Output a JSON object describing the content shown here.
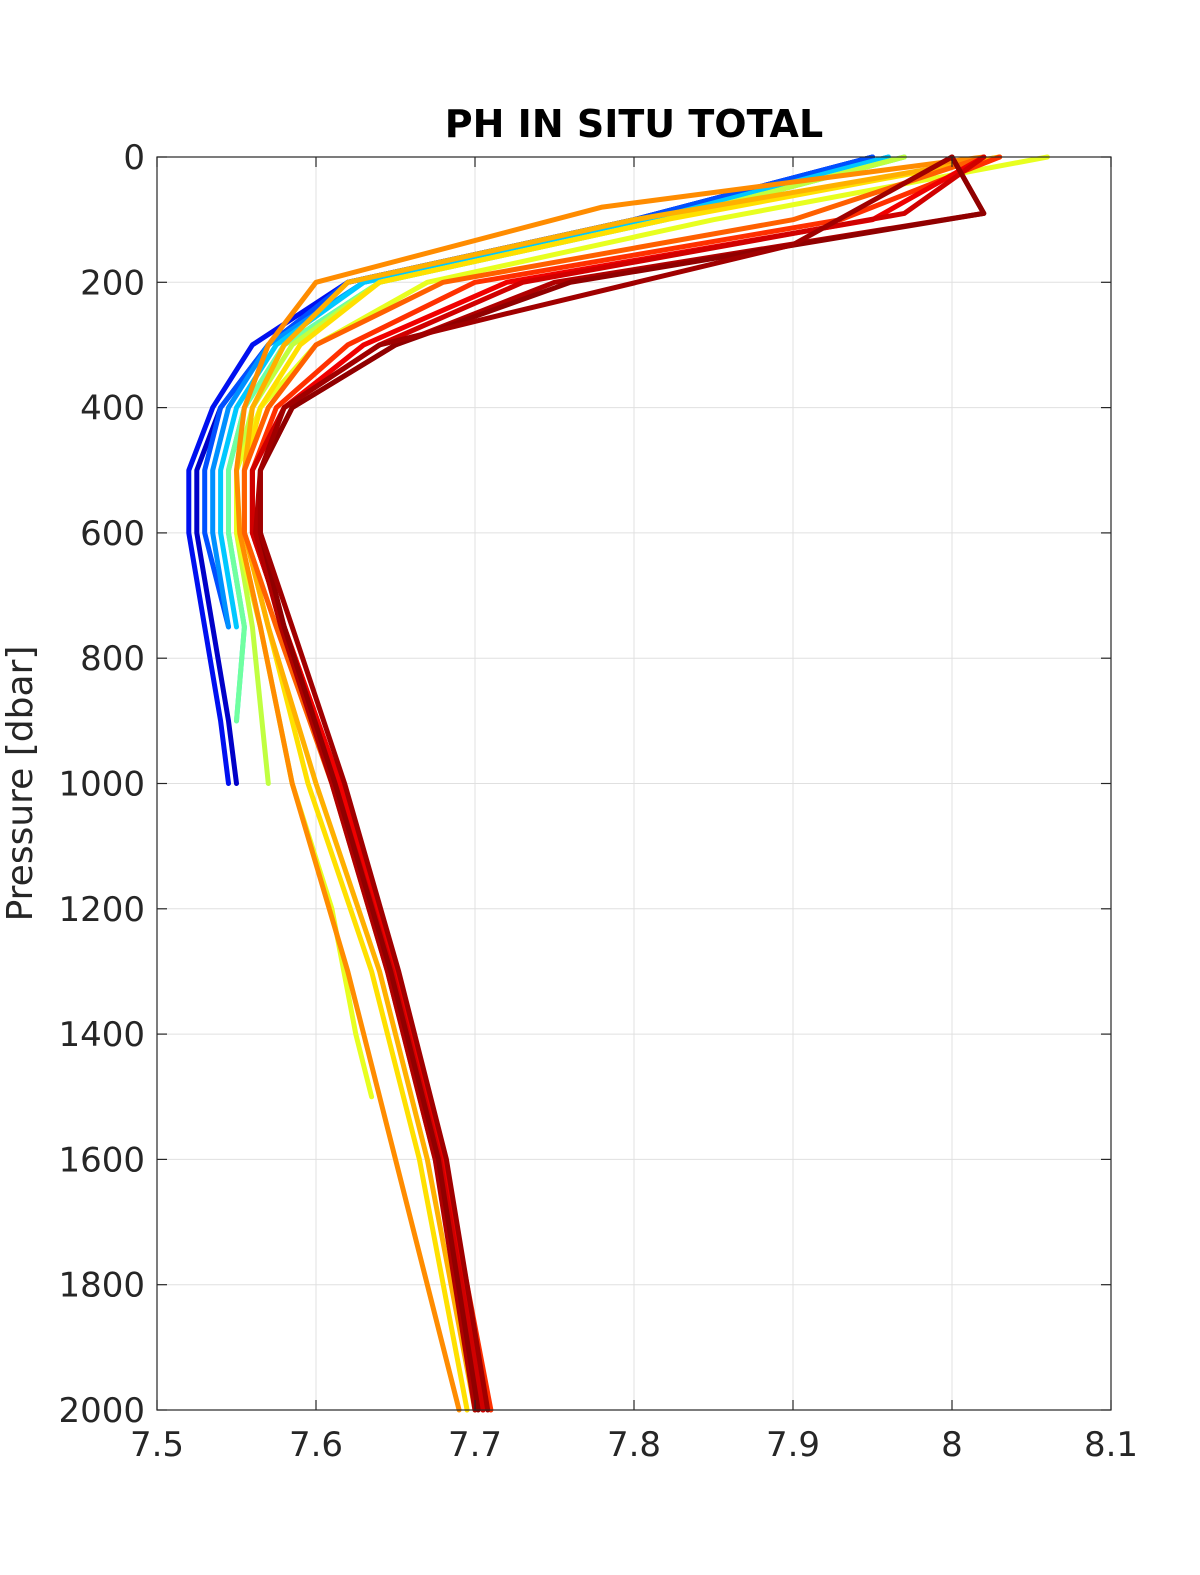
{
  "chart_data": {
    "type": "line",
    "title": "PH IN SITU TOTAL",
    "xlabel": "",
    "ylabel": "Pressure [dbar]",
    "xlim": [
      7.5,
      8.1
    ],
    "ylim": [
      0,
      2000
    ],
    "y_reversed": true,
    "grid": true,
    "legend": "none",
    "x_ticks": [
      "7.5",
      "7.6",
      "7.7",
      "7.8",
      "7.9",
      "8",
      "8.1"
    ],
    "x_tick_values": [
      7.5,
      7.6,
      7.7,
      7.8,
      7.9,
      8.0,
      8.1
    ],
    "y_ticks": [
      "0",
      "200",
      "400",
      "600",
      "800",
      "1000",
      "1200",
      "1400",
      "1600",
      "1800",
      "2000"
    ],
    "y_tick_values": [
      0,
      200,
      400,
      600,
      800,
      1000,
      1200,
      1400,
      1600,
      1800,
      2000
    ],
    "series": [
      {
        "color": "#0000c8",
        "x": [
          7.95,
          7.8,
          7.62,
          7.57,
          7.54,
          7.525,
          7.525,
          7.535,
          7.545,
          7.55
        ],
        "y": [
          0,
          100,
          200,
          300,
          400,
          500,
          600,
          750,
          900,
          1000
        ]
      },
      {
        "color": "#0010f0",
        "x": [
          7.95,
          7.8,
          7.62,
          7.56,
          7.535,
          7.52,
          7.52,
          7.53,
          7.54,
          7.545
        ],
        "y": [
          0,
          100,
          200,
          300,
          400,
          500,
          600,
          750,
          900,
          1000
        ]
      },
      {
        "color": "#0050ff",
        "x": [
          7.95,
          7.8,
          7.62,
          7.57,
          7.54,
          7.53,
          7.53,
          7.545
        ],
        "y": [
          0,
          100,
          200,
          300,
          400,
          500,
          600,
          750
        ]
      },
      {
        "color": "#0090ff",
        "x": [
          7.96,
          7.81,
          7.63,
          7.57,
          7.545,
          7.535,
          7.535,
          7.545
        ],
        "y": [
          0,
          100,
          200,
          300,
          400,
          500,
          600,
          750
        ]
      },
      {
        "color": "#00c8ff",
        "x": [
          7.96,
          7.81,
          7.63,
          7.575,
          7.55,
          7.54,
          7.54,
          7.55
        ],
        "y": [
          0,
          100,
          200,
          300,
          400,
          500,
          600,
          750
        ]
      },
      {
        "color": "#20f0e0",
        "x": [
          7.97,
          7.82,
          7.64,
          7.58,
          7.555,
          7.545,
          7.545,
          7.555,
          7.55
        ],
        "y": [
          0,
          100,
          200,
          300,
          400,
          500,
          600,
          750,
          900
        ]
      },
      {
        "color": "#70ffa0",
        "x": [
          7.97,
          7.82,
          7.64,
          7.58,
          7.555,
          7.545,
          7.545,
          7.555,
          7.55
        ],
        "y": [
          0,
          100,
          200,
          300,
          400,
          500,
          600,
          750,
          900
        ]
      },
      {
        "color": "#c0ff40",
        "x": [
          7.97,
          7.82,
          7.64,
          7.585,
          7.56,
          7.55,
          7.55,
          7.56,
          7.57
        ],
        "y": [
          0,
          100,
          200,
          300,
          400,
          500,
          600,
          750,
          1000
        ]
      },
      {
        "color": "#e8ff20",
        "x": [
          8.06,
          7.85,
          7.67,
          7.6,
          7.565,
          7.55,
          7.55,
          7.565,
          7.585,
          7.61,
          7.625,
          7.635
        ],
        "y": [
          0,
          100,
          200,
          300,
          400,
          500,
          600,
          750,
          1000,
          1200,
          1400,
          1500
        ]
      },
      {
        "color": "#ffe000",
        "x": [
          8.03,
          7.82,
          7.64,
          7.59,
          7.565,
          7.555,
          7.555,
          7.57,
          7.595,
          7.635,
          7.665,
          7.695
        ],
        "y": [
          0,
          100,
          200,
          300,
          400,
          500,
          600,
          750,
          1000,
          1300,
          1600,
          2000
        ]
      },
      {
        "color": "#ffb000",
        "x": [
          8.03,
          7.8,
          7.62,
          7.58,
          7.56,
          7.555,
          7.555,
          7.57,
          7.6,
          7.64,
          7.67,
          7.7
        ],
        "y": [
          0,
          100,
          200,
          300,
          400,
          500,
          600,
          750,
          1000,
          1300,
          1600,
          2000
        ]
      },
      {
        "color": "#ff8c00",
        "x": [
          8.02,
          7.78,
          7.6,
          7.57,
          7.555,
          7.55,
          7.552,
          7.565,
          7.585,
          7.62,
          7.65,
          7.69
        ],
        "y": [
          0,
          80,
          200,
          300,
          400,
          500,
          600,
          750,
          1000,
          1300,
          1600,
          2000
        ]
      },
      {
        "color": "#ff6000",
        "x": [
          8.02,
          7.9,
          7.68,
          7.6,
          7.57,
          7.555,
          7.555,
          7.575,
          7.61,
          7.645,
          7.675,
          7.705
        ],
        "y": [
          0,
          100,
          200,
          300,
          400,
          500,
          600,
          750,
          1000,
          1300,
          1600,
          2000
        ]
      },
      {
        "color": "#ff3000",
        "x": [
          8.03,
          7.93,
          7.7,
          7.62,
          7.575,
          7.56,
          7.56,
          7.58,
          7.615,
          7.65,
          7.68,
          7.71
        ],
        "y": [
          0,
          100,
          200,
          300,
          400,
          500,
          600,
          750,
          1000,
          1300,
          1600,
          2000
        ]
      },
      {
        "color": "#f00000",
        "x": [
          8.02,
          7.95,
          7.72,
          7.63,
          7.58,
          7.56,
          7.56,
          7.58,
          7.615,
          7.65,
          7.68,
          7.705
        ],
        "y": [
          0,
          100,
          200,
          300,
          400,
          500,
          600,
          750,
          1000,
          1300,
          1600,
          2000
        ]
      },
      {
        "color": "#d00000",
        "x": [
          8.02,
          7.97,
          7.73,
          7.64,
          7.58,
          7.56,
          7.56,
          7.58,
          7.612,
          7.648,
          7.678,
          7.705
        ],
        "y": [
          0,
          90,
          200,
          300,
          400,
          500,
          600,
          750,
          1000,
          1300,
          1600,
          2000
        ]
      },
      {
        "color": "#b00000",
        "x": [
          8.0,
          8.02,
          7.75,
          7.65,
          7.585,
          7.565,
          7.562,
          7.578,
          7.61,
          7.645,
          7.675,
          7.7
        ],
        "y": [
          0,
          90,
          200,
          300,
          400,
          500,
          600,
          750,
          1000,
          1300,
          1600,
          2000
        ]
      },
      {
        "color": "#900000",
        "x": [
          8.0,
          8.02,
          7.76,
          7.65,
          7.585,
          7.565,
          7.565,
          7.58,
          7.612,
          7.647,
          7.677,
          7.702
        ],
        "y": [
          0,
          90,
          200,
          300,
          400,
          500,
          600,
          750,
          1000,
          1300,
          1600,
          2000
        ]
      },
      {
        "color": "#a00000",
        "x": [
          8.0,
          7.9,
          7.72,
          7.64,
          7.58,
          7.565,
          7.565,
          7.585,
          7.618,
          7.652,
          7.682,
          7.708
        ],
        "y": [
          0,
          140,
          250,
          300,
          400,
          500,
          600,
          750,
          1000,
          1300,
          1600,
          2000
        ]
      }
    ]
  }
}
